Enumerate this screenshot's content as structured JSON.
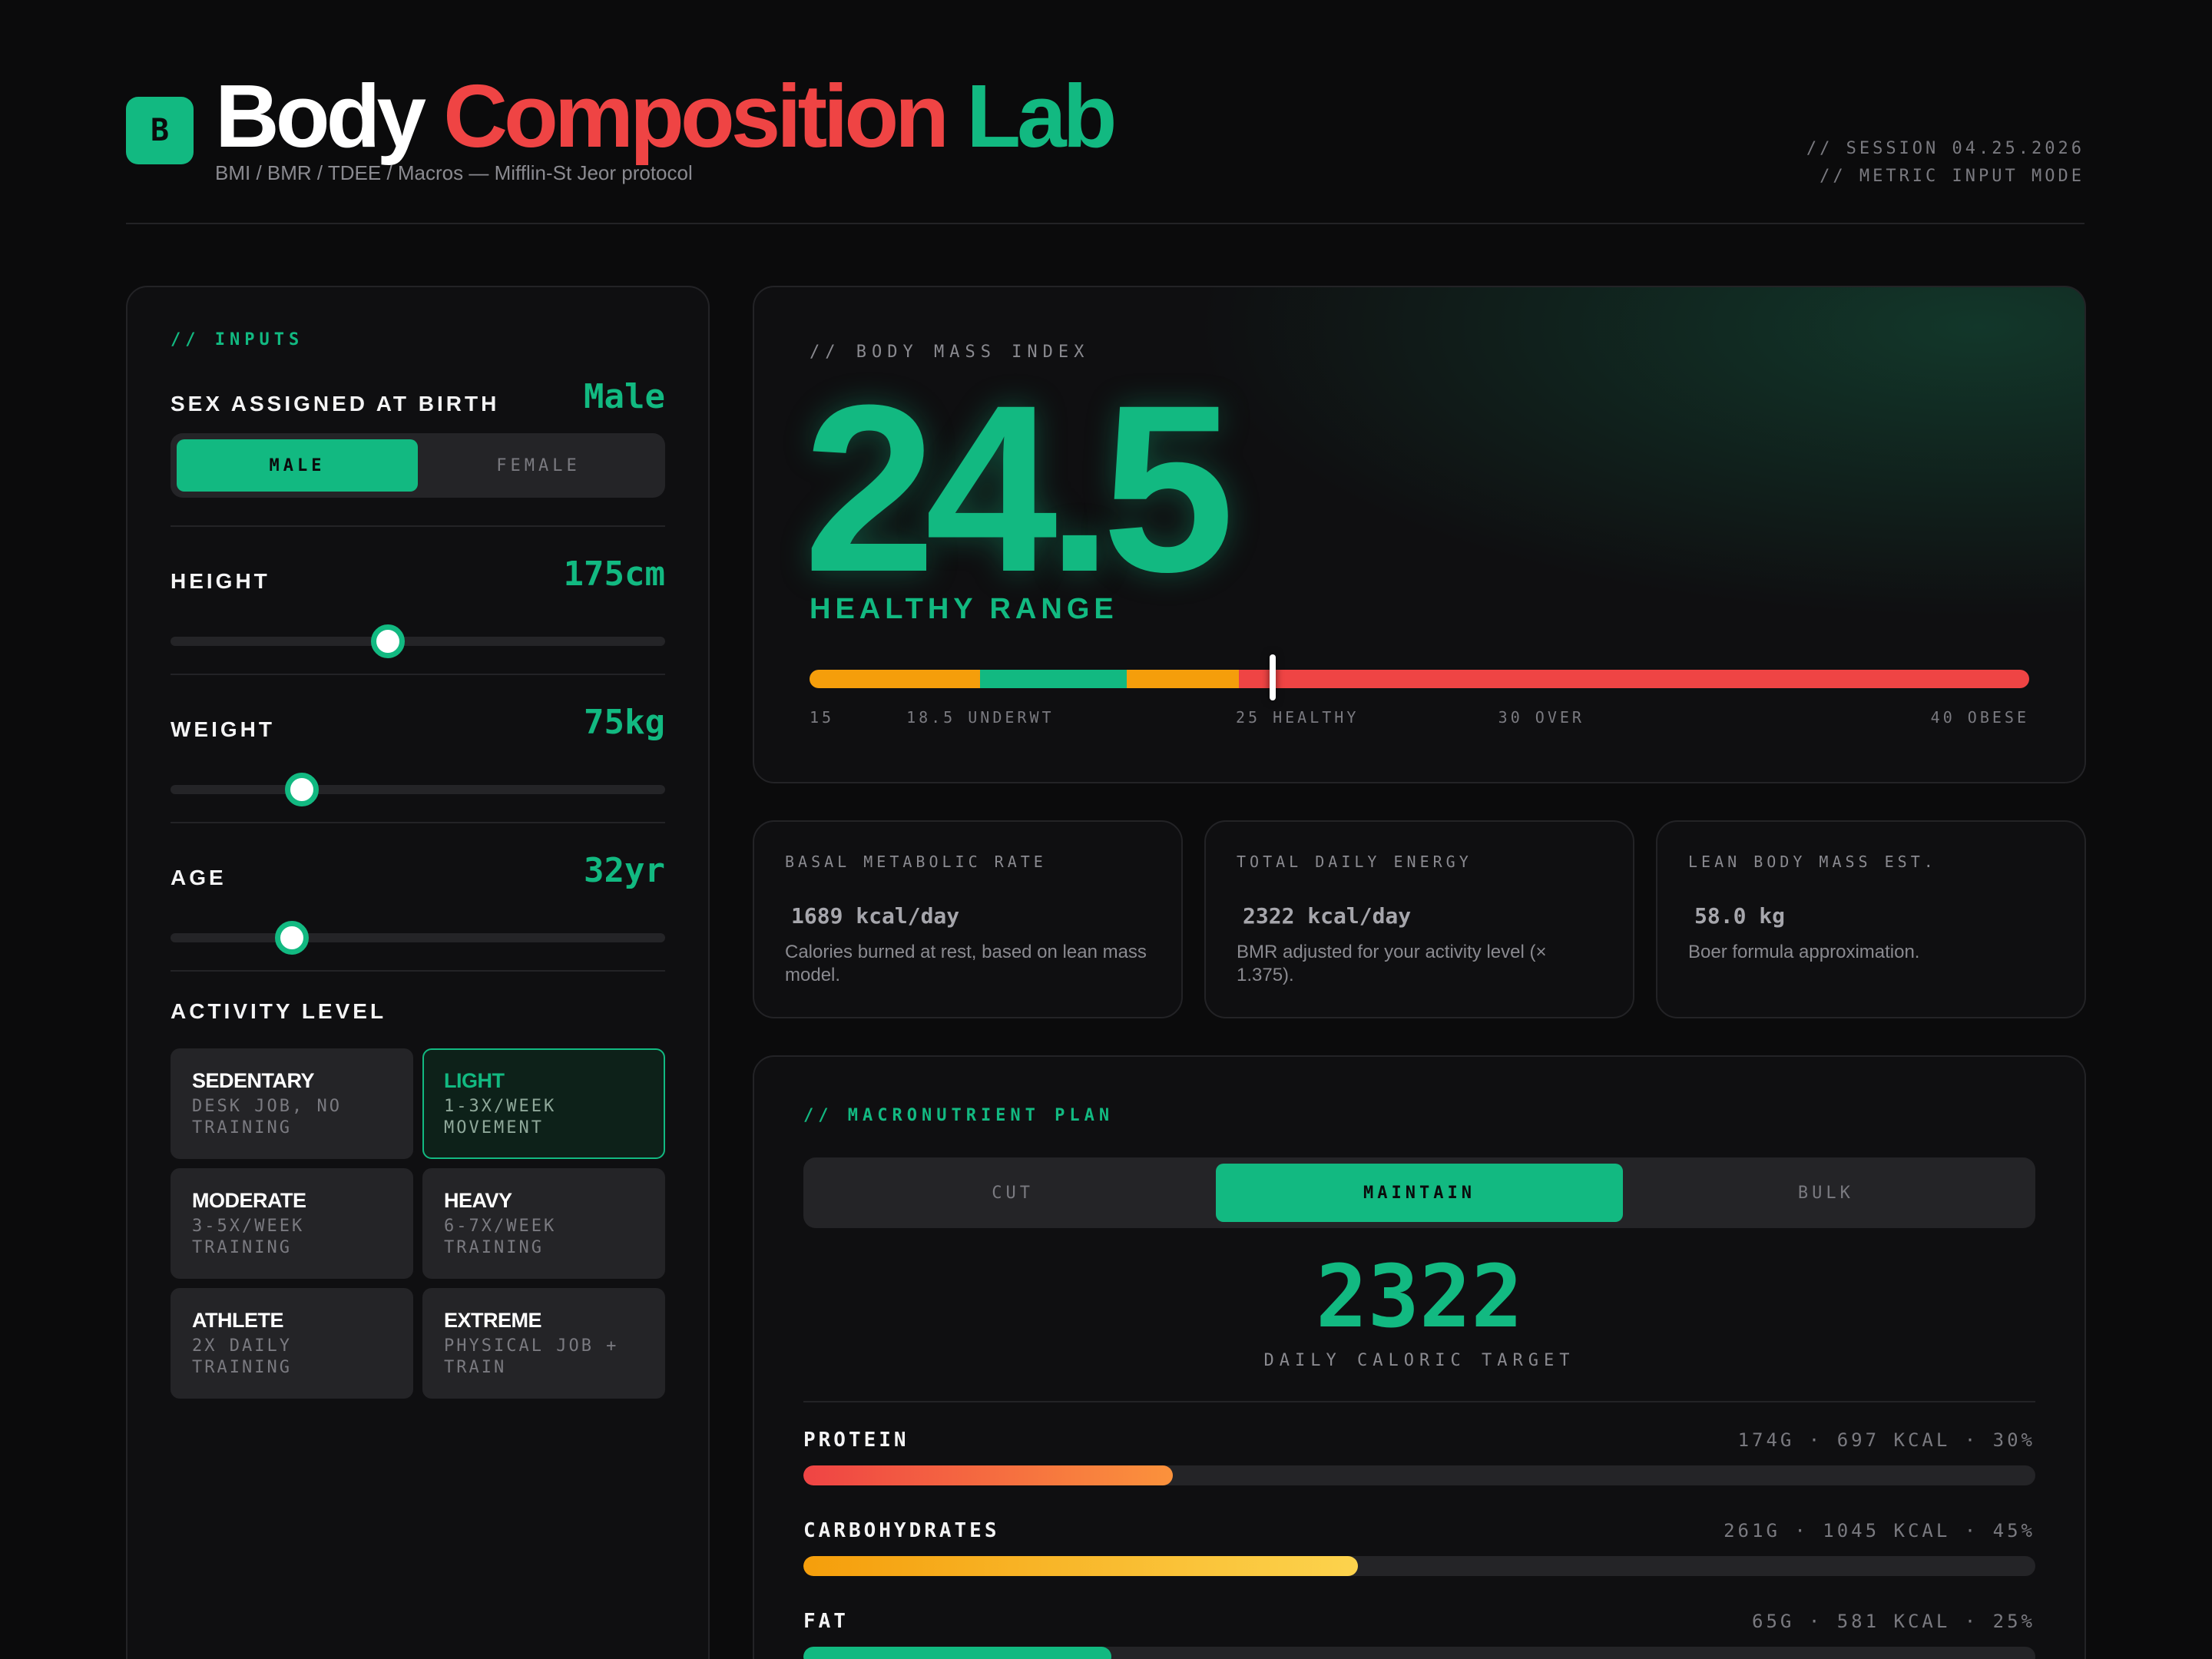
{
  "app": {
    "logo_letter": "B",
    "title_parts": [
      "Body",
      "Composition",
      "Lab"
    ],
    "subtitle": "BMI / BMR / TDEE / Macros — Mifflin-St Jeor protocol",
    "session_line1": "// SESSION 04.25.2026",
    "session_line2": "// METRIC INPUT MODE",
    "colors": {
      "accent": "#12b981",
      "danger": "#ef4444",
      "warning": "#f59e0b"
    }
  },
  "inputs": {
    "section_label": "// INPUTS",
    "sex": {
      "label": "SEX ASSIGNED AT BIRTH",
      "value": "Male",
      "options": [
        "MALE",
        "FEMALE"
      ],
      "selected": 0
    },
    "height": {
      "label": "HEIGHT",
      "value": "175cm",
      "slider_fraction": 0.44
    },
    "weight": {
      "label": "WEIGHT",
      "value": "75kg",
      "slider_fraction": 0.265
    },
    "age": {
      "label": "AGE",
      "value": "32yr",
      "slider_fraction": 0.245
    },
    "activity": {
      "label": "ACTIVITY LEVEL",
      "selected": 1,
      "options": [
        {
          "title": "SEDENTARY",
          "desc": "DESK JOB, NO TRAINING"
        },
        {
          "title": "LIGHT",
          "desc": "1-3X/WEEK MOVEMENT"
        },
        {
          "title": "MODERATE",
          "desc": "3-5X/WEEK TRAINING"
        },
        {
          "title": "HEAVY",
          "desc": "6-7X/WEEK TRAINING"
        },
        {
          "title": "ATHLETE",
          "desc": "2X DAILY TRAINING"
        },
        {
          "title": "EXTREME",
          "desc": "PHYSICAL JOB + TRAIN"
        }
      ]
    }
  },
  "bmi": {
    "label": "// BODY MASS INDEX",
    "value": "24.5",
    "range_label": "HEALTHY RANGE",
    "scale_min": 15,
    "scale_max": 40,
    "marker_value": 24.5,
    "segments": [
      {
        "from": 15,
        "to": 18.5,
        "color": "#f59e0b"
      },
      {
        "from": 18.5,
        "to": 21.5,
        "color": "#12b981"
      },
      {
        "from": 21.5,
        "to": 23.8,
        "color": "#f59e0b"
      },
      {
        "from": 23.8,
        "to": 40,
        "color": "#ef4444"
      }
    ],
    "ticks": [
      {
        "value": 15,
        "label": "15"
      },
      {
        "value": 18.5,
        "label": "18.5 UNDERWT"
      },
      {
        "value": 25,
        "label": "25 HEALTHY"
      },
      {
        "value": 30,
        "label": "30 OVER"
      },
      {
        "value": 40,
        "label": "40 OBESE"
      }
    ]
  },
  "stats": [
    {
      "label": "BASAL METABOLIC RATE",
      "value": "1689 kcal/day",
      "desc": "Calories burned at rest, based on lean mass model."
    },
    {
      "label": "TOTAL DAILY ENERGY",
      "value": "2322 kcal/day",
      "desc": "BMR adjusted for your activity level (× 1.375)."
    },
    {
      "label": "LEAN BODY MASS EST.",
      "value": "58.0 kg",
      "desc": "Boer formula approximation."
    }
  ],
  "macros": {
    "section_label": "// MACRONUTRIENT PLAN",
    "modes": [
      "CUT",
      "MAINTAIN",
      "BULK"
    ],
    "selected_mode": 1,
    "target": "2322",
    "target_label": "DAILY CALORIC TARGET",
    "items": [
      {
        "name": "PROTEIN",
        "info": "174G · 697 KCAL · 30%",
        "fraction": 0.3,
        "gradient": [
          "#ef4444",
          "#fb923c"
        ]
      },
      {
        "name": "CARBOHYDRATES",
        "info": "261G · 1045 KCAL · 45%",
        "fraction": 0.45,
        "gradient": [
          "#f59e0b",
          "#fcd34d"
        ]
      },
      {
        "name": "FAT",
        "info": "65G · 581 KCAL · 25%",
        "fraction": 0.25,
        "gradient": [
          "#12b981",
          "#12b981"
        ]
      }
    ]
  }
}
